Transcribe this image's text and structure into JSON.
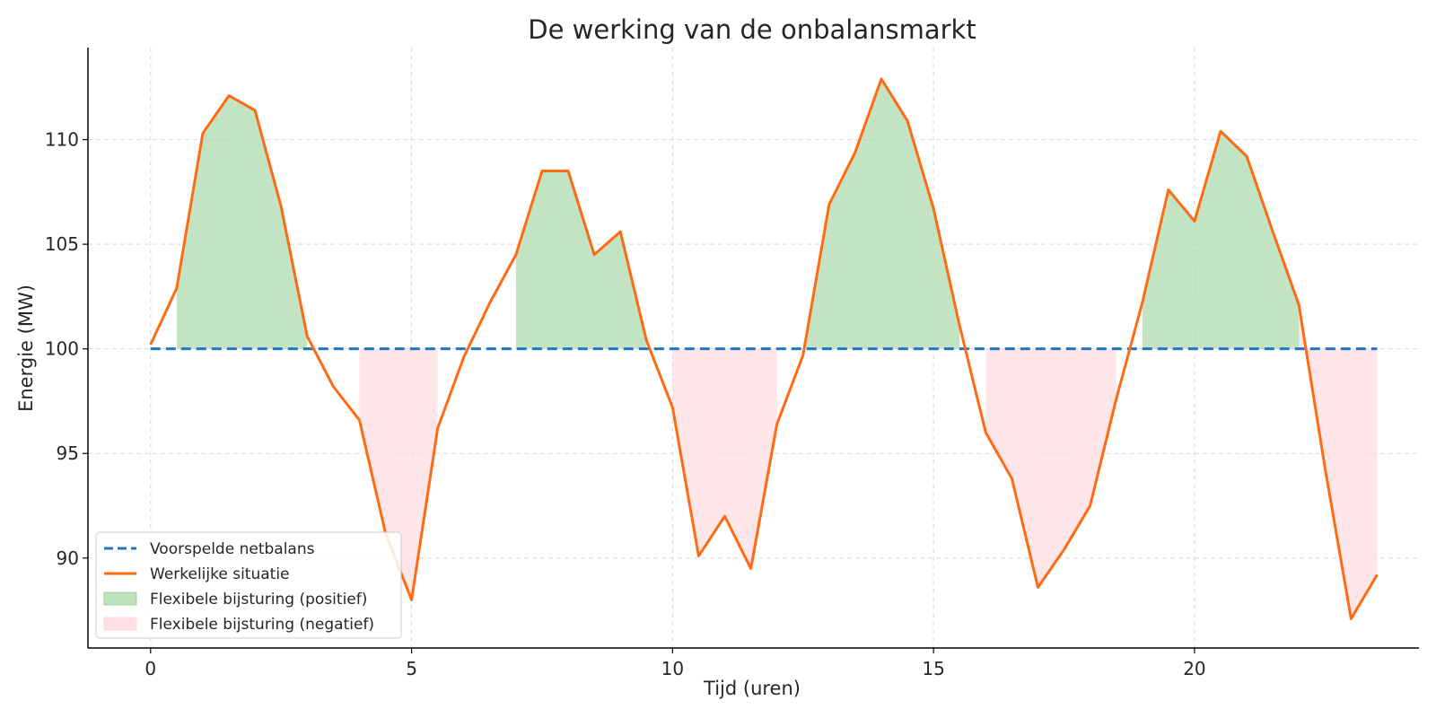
{
  "chart_data": {
    "type": "line",
    "title": "De werking van de onbalansmarkt",
    "xlabel": "Tijd (uren)",
    "ylabel": "Energie (MW)",
    "xlim": [
      -1.2,
      24.3
    ],
    "ylim": [
      85.7,
      114.4
    ],
    "x_ticks": [
      0,
      5,
      10,
      15,
      20
    ],
    "y_ticks": [
      90,
      95,
      100,
      105,
      110
    ],
    "grid": true,
    "legend_position": "lower-left",
    "x": [
      0,
      0.5,
      1,
      1.5,
      2,
      2.5,
      3,
      3.5,
      4,
      4.5,
      5,
      5.5,
      6,
      6.5,
      7,
      7.5,
      8,
      8.5,
      9,
      9.5,
      10,
      10.5,
      11,
      11.5,
      12,
      12.5,
      13,
      13.5,
      14,
      14.5,
      15,
      15.5,
      16,
      16.5,
      17,
      17.5,
      18,
      18.5,
      19,
      19.5,
      20,
      20.5,
      21,
      21.5,
      22,
      22.5,
      23,
      23.5
    ],
    "series": [
      {
        "name": "Voorspelde netbalans",
        "style": "dashed",
        "color": "#1f77c4",
        "values": [
          100,
          100,
          100,
          100,
          100,
          100,
          100,
          100,
          100,
          100,
          100,
          100,
          100,
          100,
          100,
          100,
          100,
          100,
          100,
          100,
          100,
          100,
          100,
          100,
          100,
          100,
          100,
          100,
          100,
          100,
          100,
          100,
          100,
          100,
          100,
          100,
          100,
          100,
          100,
          100,
          100,
          100,
          100,
          100,
          100,
          100,
          100,
          100
        ]
      },
      {
        "name": "Werkelijke situatie",
        "style": "solid",
        "color": "#ff6a13",
        "values": [
          100.2,
          102.9,
          110.3,
          112.1,
          111.4,
          106.8,
          100.6,
          98.2,
          96.6,
          91.2,
          88.0,
          96.2,
          99.6,
          102.2,
          104.5,
          108.5,
          108.5,
          104.5,
          105.6,
          100.4,
          97.2,
          90.1,
          92.0,
          89.5,
          96.4,
          99.7,
          106.9,
          109.4,
          112.9,
          110.9,
          106.7,
          101.1,
          96.0,
          93.8,
          88.6,
          90.4,
          92.5,
          97.6,
          102.2,
          107.6,
          106.1,
          110.4,
          109.2,
          105.6,
          102.1,
          94.3,
          87.1,
          89.2
        ]
      }
    ],
    "fill_positive": {
      "name": "Flexibele bijsturing (positief)",
      "color": "#a8d8a8",
      "x": [
        0.5,
        1,
        1.5,
        2,
        2.5,
        3,
        7,
        7.5,
        8,
        8.5,
        9,
        9.5,
        12.5,
        13,
        13.5,
        14,
        14.5,
        15,
        15.5,
        19,
        19.5,
        20,
        20.5,
        21,
        21.5,
        22
      ]
    },
    "fill_negative": {
      "name": "Flexibele bijsturing (negatief)",
      "color": "#ffdde2",
      "x": [
        4,
        4.5,
        5,
        5.5,
        10,
        10.5,
        11,
        11.5,
        12,
        16,
        16.5,
        17,
        17.5,
        18,
        18.5,
        22,
        22.5,
        23,
        23.5
      ]
    }
  }
}
